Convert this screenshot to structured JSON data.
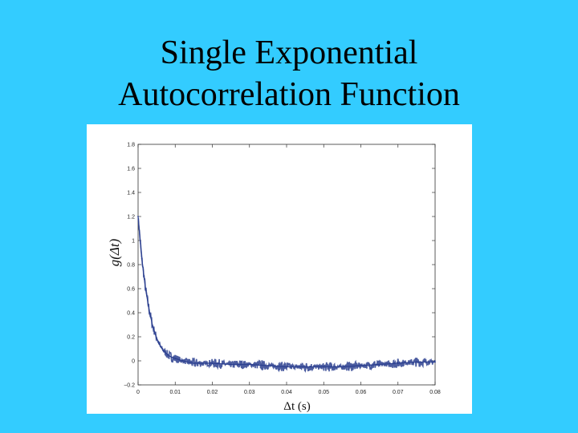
{
  "slide": {
    "title_line1": "Single Exponential",
    "title_line2": "Autocorrelation Function",
    "background_color": "#33ccff"
  },
  "chart_data": {
    "type": "line",
    "title": "",
    "xlabel": "Δt (s)",
    "ylabel": "g(Δt)",
    "xlim": [
      0,
      0.08
    ],
    "ylim": [
      -0.2,
      1.8
    ],
    "xticks": [
      "0",
      "0.01",
      "0.02",
      "0.03",
      "0.04",
      "0.05",
      "0.06",
      "0.07",
      "0.08"
    ],
    "yticks": [
      "−0.2",
      "0",
      "0.2",
      "0.4",
      "0.6",
      "0.8",
      "1",
      "1.2",
      "1.4",
      "1.6",
      "1.8"
    ],
    "grid": false,
    "line_color": "#2b3f8f",
    "series": [
      {
        "x": [
          0.0,
          0.001,
          0.002,
          0.003,
          0.004,
          0.005,
          0.006,
          0.007,
          0.008,
          0.009,
          0.01,
          0.012,
          0.015,
          0.02,
          0.025,
          0.03,
          0.035,
          0.04,
          0.045,
          0.05,
          0.055,
          0.06,
          0.065,
          0.07,
          0.075,
          0.08
        ],
        "values": [
          1.2,
          0.85,
          0.6,
          0.42,
          0.28,
          0.19,
          0.12,
          0.08,
          0.05,
          0.03,
          0.02,
          0.0,
          -0.02,
          -0.02,
          -0.03,
          -0.03,
          -0.04,
          -0.05,
          -0.05,
          -0.05,
          -0.05,
          -0.04,
          -0.03,
          -0.02,
          -0.01,
          -0.01
        ]
      }
    ]
  }
}
